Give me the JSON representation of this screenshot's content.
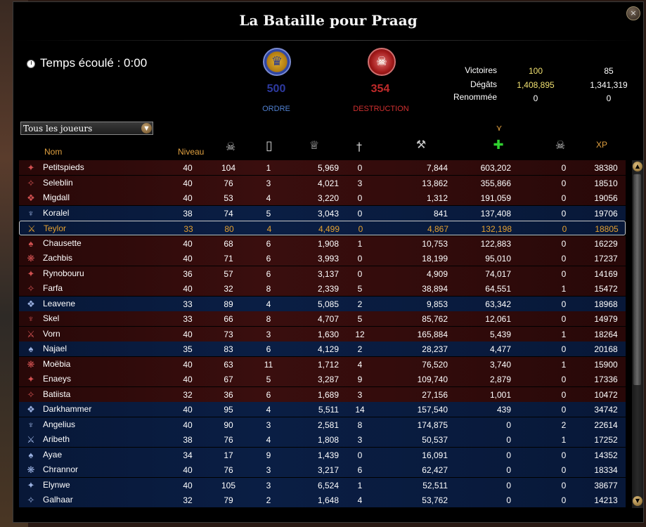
{
  "window": {
    "title": "La Bataille pour Praag",
    "close": "×"
  },
  "timer": {
    "label": "Temps écoulé : 0:00"
  },
  "realms": {
    "order": {
      "score": "500",
      "name": "ORDRE",
      "icon": "order-griffon-icon",
      "color": "#2e3aa0"
    },
    "destruction": {
      "score": "354",
      "name": "DESTRUCTION",
      "icon": "destruction-skull-icon",
      "color": "#c02a2a"
    }
  },
  "stats": {
    "victories": {
      "label": "Victoires",
      "order": "100",
      "destruction": "85"
    },
    "damage": {
      "label": "Dégâts",
      "order": "1,408,895",
      "destruction": "1,341,319"
    },
    "renown": {
      "label": "Renommée",
      "order": "0",
      "destruction": "0"
    }
  },
  "filter": {
    "selected": "Tous les joueurs"
  },
  "columns": {
    "name": "Nom",
    "level": "Niveau",
    "kills_icon": "skulls-icon",
    "deaths_icon": "tombstone-icon",
    "renown_icon": "crown-icon",
    "killing_blows_icon": "dagger-icon",
    "damage_icon": "axe-icon",
    "healing_icon": "green-cross-icon",
    "protection_icon": "skull-icon",
    "xp": "XP"
  },
  "rows": [
    {
      "realm": "d",
      "icon": "career-icon",
      "name": "Petitspieds",
      "level": "40",
      "kills": "104",
      "deaths": "1",
      "renown": "5,969",
      "kb": "0",
      "damage": "7,844",
      "healing": "603,202",
      "prot": "0",
      "xp": "38380"
    },
    {
      "realm": "d",
      "icon": "career-icon",
      "name": "Seleblin",
      "level": "40",
      "kills": "76",
      "deaths": "3",
      "renown": "4,021",
      "kb": "3",
      "damage": "13,862",
      "healing": "355,866",
      "prot": "0",
      "xp": "18510"
    },
    {
      "realm": "d",
      "icon": "career-icon",
      "name": "Migdall",
      "level": "40",
      "kills": "53",
      "deaths": "4",
      "renown": "3,220",
      "kb": "0",
      "damage": "1,312",
      "healing": "191,059",
      "prot": "0",
      "xp": "19056"
    },
    {
      "realm": "o",
      "icon": "career-icon",
      "name": "Koralel",
      "level": "38",
      "kills": "74",
      "deaths": "5",
      "renown": "3,043",
      "kb": "0",
      "damage": "841",
      "healing": "137,408",
      "prot": "0",
      "xp": "19706"
    },
    {
      "realm": "o",
      "icon": "career-icon",
      "name": "Teylor",
      "level": "33",
      "kills": "80",
      "deaths": "4",
      "renown": "4,499",
      "kb": "0",
      "damage": "4,867",
      "healing": "132,198",
      "prot": "0",
      "xp": "18805",
      "selected": true
    },
    {
      "realm": "d",
      "icon": "career-icon",
      "name": "Chausette",
      "level": "40",
      "kills": "68",
      "deaths": "6",
      "renown": "1,908",
      "kb": "1",
      "damage": "10,753",
      "healing": "122,883",
      "prot": "0",
      "xp": "16229"
    },
    {
      "realm": "d",
      "icon": "career-icon",
      "name": "Zachbis",
      "level": "40",
      "kills": "71",
      "deaths": "6",
      "renown": "3,993",
      "kb": "0",
      "damage": "18,199",
      "healing": "95,010",
      "prot": "0",
      "xp": "17237"
    },
    {
      "realm": "d",
      "icon": "career-icon",
      "name": "Rynobouru",
      "level": "36",
      "kills": "57",
      "deaths": "6",
      "renown": "3,137",
      "kb": "0",
      "damage": "4,909",
      "healing": "74,017",
      "prot": "0",
      "xp": "14169"
    },
    {
      "realm": "d",
      "icon": "career-icon",
      "name": "Farfa",
      "level": "40",
      "kills": "32",
      "deaths": "8",
      "renown": "2,339",
      "kb": "5",
      "damage": "38,894",
      "healing": "64,551",
      "prot": "1",
      "xp": "15472"
    },
    {
      "realm": "o",
      "icon": "career-icon",
      "name": "Leavene",
      "level": "33",
      "kills": "89",
      "deaths": "4",
      "renown": "5,085",
      "kb": "2",
      "damage": "9,853",
      "healing": "63,342",
      "prot": "0",
      "xp": "18968"
    },
    {
      "realm": "d",
      "icon": "career-icon",
      "name": "Skel",
      "level": "33",
      "kills": "66",
      "deaths": "8",
      "renown": "4,707",
      "kb": "5",
      "damage": "85,762",
      "healing": "12,061",
      "prot": "0",
      "xp": "14979"
    },
    {
      "realm": "d",
      "icon": "career-icon",
      "name": "Vorn",
      "level": "40",
      "kills": "73",
      "deaths": "3",
      "renown": "1,630",
      "kb": "12",
      "damage": "165,884",
      "healing": "5,439",
      "prot": "1",
      "xp": "18264"
    },
    {
      "realm": "o",
      "icon": "career-icon",
      "name": "Najael",
      "level": "35",
      "kills": "83",
      "deaths": "6",
      "renown": "4,129",
      "kb": "2",
      "damage": "28,237",
      "healing": "4,477",
      "prot": "0",
      "xp": "20168"
    },
    {
      "realm": "d",
      "icon": "career-icon",
      "name": "Moëbia",
      "level": "40",
      "kills": "63",
      "deaths": "11",
      "renown": "1,712",
      "kb": "4",
      "damage": "76,520",
      "healing": "3,740",
      "prot": "1",
      "xp": "15900"
    },
    {
      "realm": "d",
      "icon": "career-icon",
      "name": "Enaeys",
      "level": "40",
      "kills": "67",
      "deaths": "5",
      "renown": "3,287",
      "kb": "9",
      "damage": "109,740",
      "healing": "2,879",
      "prot": "0",
      "xp": "17336"
    },
    {
      "realm": "d",
      "icon": "career-icon",
      "name": "Batiista",
      "level": "32",
      "kills": "36",
      "deaths": "6",
      "renown": "1,689",
      "kb": "3",
      "damage": "27,156",
      "healing": "1,001",
      "prot": "0",
      "xp": "10472"
    },
    {
      "realm": "o",
      "icon": "career-icon",
      "name": "Darkhammer",
      "level": "40",
      "kills": "95",
      "deaths": "4",
      "renown": "5,511",
      "kb": "14",
      "damage": "157,540",
      "healing": "439",
      "prot": "0",
      "xp": "34742"
    },
    {
      "realm": "o",
      "icon": "career-icon",
      "name": "Angelius",
      "level": "40",
      "kills": "90",
      "deaths": "3",
      "renown": "2,581",
      "kb": "8",
      "damage": "174,875",
      "healing": "0",
      "prot": "2",
      "xp": "22614"
    },
    {
      "realm": "o",
      "icon": "career-icon",
      "name": "Aribeth",
      "level": "38",
      "kills": "76",
      "deaths": "4",
      "renown": "1,808",
      "kb": "3",
      "damage": "50,537",
      "healing": "0",
      "prot": "1",
      "xp": "17252"
    },
    {
      "realm": "o",
      "icon": "career-icon",
      "name": "Ayae",
      "level": "34",
      "kills": "17",
      "deaths": "9",
      "renown": "1,439",
      "kb": "0",
      "damage": "16,091",
      "healing": "0",
      "prot": "0",
      "xp": "14352"
    },
    {
      "realm": "o",
      "icon": "career-icon",
      "name": "Chrannor",
      "level": "40",
      "kills": "76",
      "deaths": "3",
      "renown": "3,217",
      "kb": "6",
      "damage": "62,427",
      "healing": "0",
      "prot": "0",
      "xp": "18334"
    },
    {
      "realm": "o",
      "icon": "career-icon",
      "name": "Elynwe",
      "level": "40",
      "kills": "105",
      "deaths": "3",
      "renown": "6,524",
      "kb": "1",
      "damage": "52,511",
      "healing": "0",
      "prot": "0",
      "xp": "38677"
    },
    {
      "realm": "o",
      "icon": "career-icon",
      "name": "Galhaar",
      "level": "32",
      "kills": "79",
      "deaths": "2",
      "renown": "1,648",
      "kb": "4",
      "damage": "53,762",
      "healing": "0",
      "prot": "0",
      "xp": "14213"
    }
  ]
}
